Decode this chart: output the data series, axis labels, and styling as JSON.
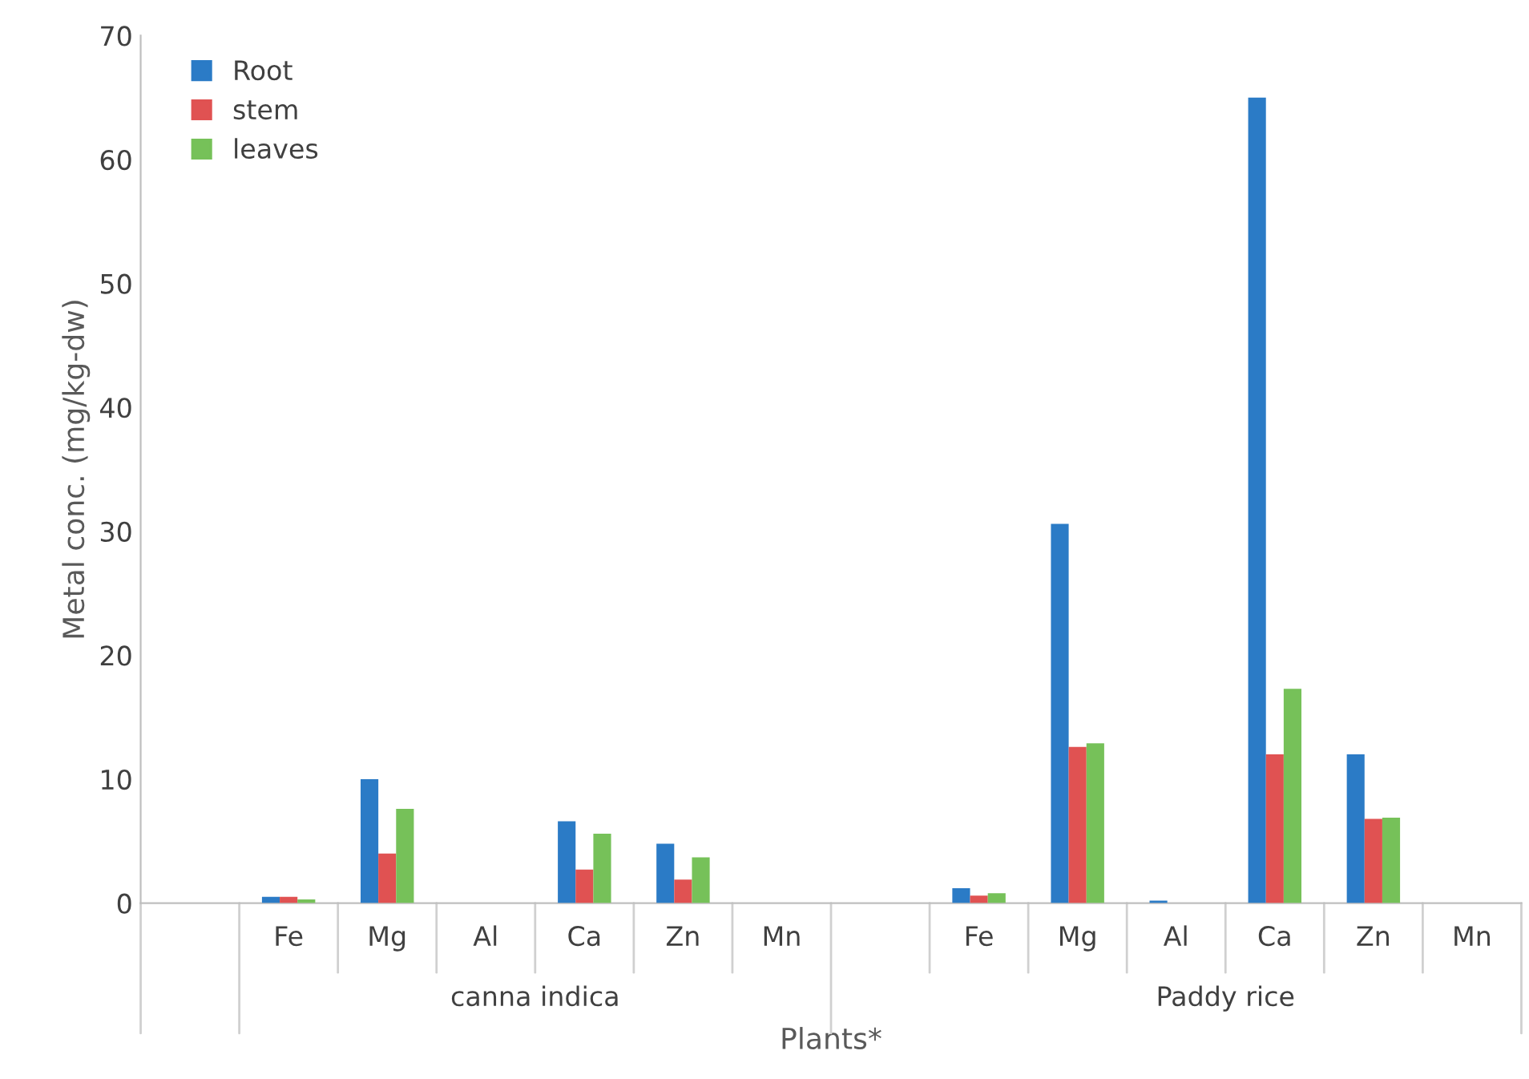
{
  "chart_data": {
    "type": "bar",
    "xlabel": "Plants*",
    "ylabel": "Metal conc. (mg/kg-dw)",
    "categories": [
      null,
      "Fe",
      "Mg",
      "Al",
      "Ca",
      "Zn",
      "Mn",
      null,
      "Fe",
      "Mg",
      "Al",
      "Ca",
      "Zn",
      "Mn"
    ],
    "series": [
      {
        "name": "Root",
        "color": "#2b7bc6",
        "values": [
          null,
          0.5,
          10,
          null,
          6.6,
          4.8,
          null,
          null,
          1.2,
          30.6,
          0.2,
          65,
          12,
          null
        ]
      },
      {
        "name": "stem",
        "color": "#e05252",
        "values": [
          null,
          0.5,
          4.0,
          null,
          2.7,
          1.9,
          null,
          null,
          0.6,
          12.6,
          null,
          12,
          6.8,
          null
        ]
      },
      {
        "name": "leaves",
        "color": "#76c159",
        "values": [
          null,
          0.3,
          7.6,
          null,
          5.6,
          3.7,
          null,
          null,
          0.8,
          12.9,
          null,
          17.3,
          6.9,
          null
        ]
      }
    ],
    "annotations": [
      "canna indica",
      "Paddy rice"
    ],
    "ylim": [
      0,
      70
    ],
    "yticks": [
      0,
      10,
      20,
      30,
      40,
      50,
      60,
      70
    ],
    "grid": false,
    "legend": "top left"
  }
}
